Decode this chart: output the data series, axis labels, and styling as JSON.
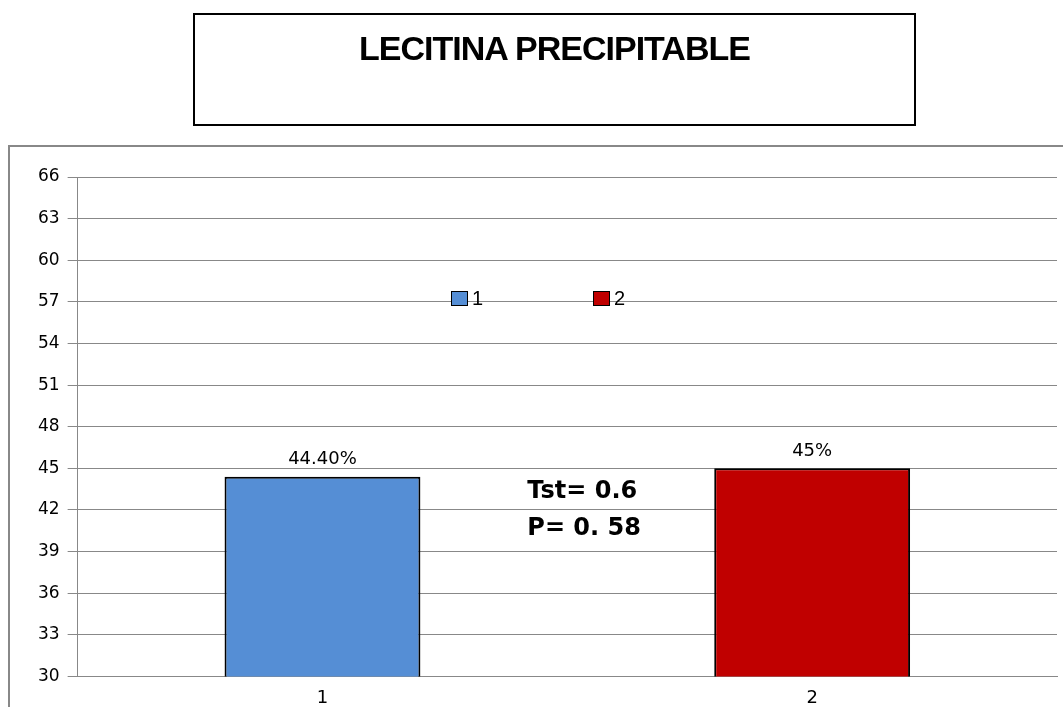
{
  "chart_data": {
    "type": "bar",
    "title": "LECITINA PRECIPITABLE",
    "categories": [
      "1",
      "2"
    ],
    "series": [
      {
        "name": "1",
        "color": "#558ed5",
        "values": [
          44.4,
          null
        ],
        "value_labels": [
          "44.40%",
          null
        ]
      },
      {
        "name": "2",
        "color": "#c00000",
        "values": [
          null,
          45
        ],
        "value_labels": [
          null,
          "45%"
        ]
      }
    ],
    "ylim": [
      30,
      66
    ],
    "yticks": [
      30,
      33,
      36,
      39,
      42,
      45,
      48,
      51,
      54,
      57,
      60,
      63,
      66
    ],
    "grid": "y",
    "legend": "top",
    "annotations": [
      "Tst= 0.6",
      "P= 0. 58"
    ]
  }
}
